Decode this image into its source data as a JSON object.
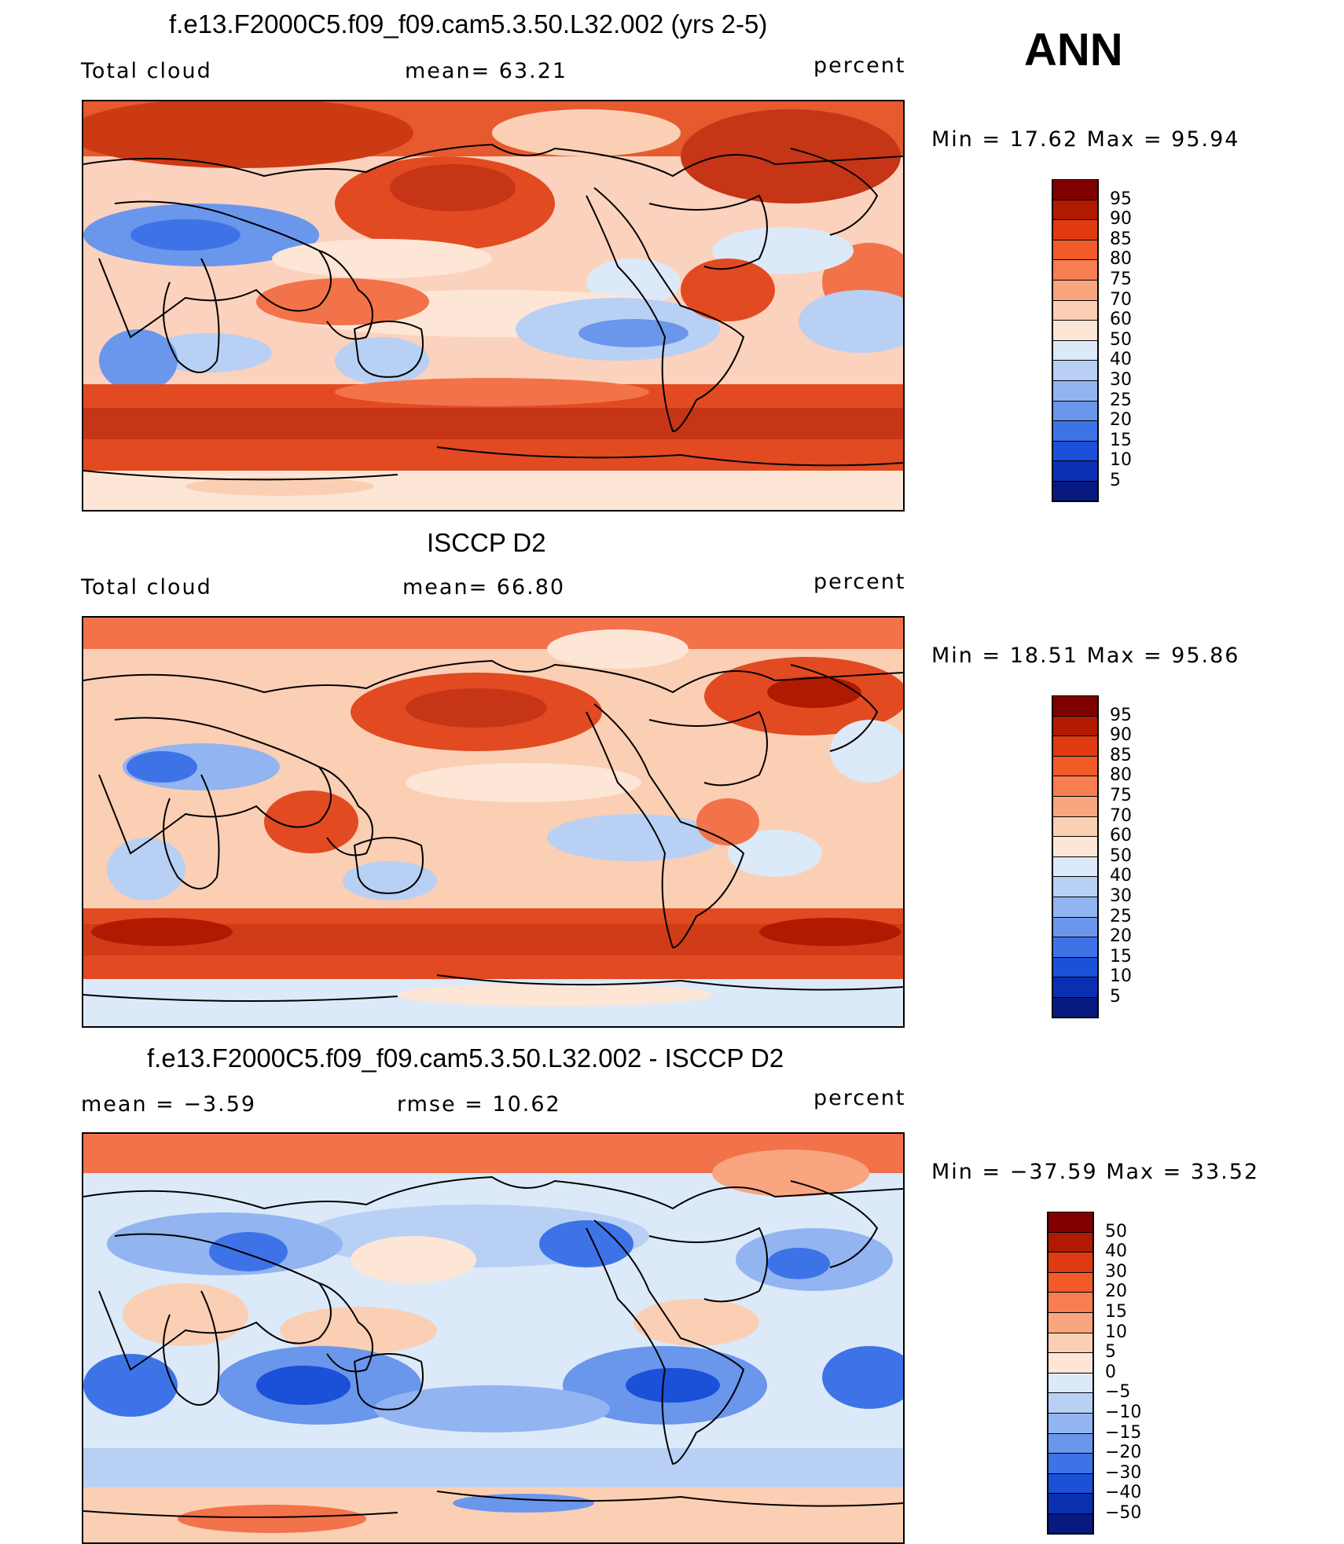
{
  "season": "ANN",
  "panels": [
    {
      "title": "f.e13.F2000C5.f09_f09.cam5.3.50.L32.002 (yrs 2-5)",
      "left_label": "Total cloud",
      "center_label": "mean=   63.21",
      "right_label": "percent",
      "minmax": "Min =   17.62  Max =   95.94",
      "colorbar": {
        "colors": [
          "#800000",
          "#b01a00",
          "#e03a10",
          "#f25a28",
          "#f67e50",
          "#f8a580",
          "#fbcfb4",
          "#fde6d6",
          "#dce9f8",
          "#b8d0f3",
          "#92b4f0",
          "#6a96ec",
          "#3e73e8",
          "#1b50d8",
          "#0a2fb0",
          "#061a80"
        ],
        "ticks": [
          "95",
          "90",
          "85",
          "80",
          "75",
          "70",
          "60",
          "50",
          "40",
          "30",
          "25",
          "20",
          "15",
          "10",
          "5"
        ]
      }
    },
    {
      "title": "ISCCP D2",
      "left_label": "Total cloud",
      "center_label": "mean=   66.80",
      "right_label": "percent",
      "minmax": "Min =   18.51  Max =   95.86",
      "colorbar": {
        "colors": [
          "#800000",
          "#b01a00",
          "#e03a10",
          "#f25a28",
          "#f67e50",
          "#f8a580",
          "#fbcfb4",
          "#fde6d6",
          "#dce9f8",
          "#b8d0f3",
          "#92b4f0",
          "#6a96ec",
          "#3e73e8",
          "#1b50d8",
          "#0a2fb0",
          "#061a80"
        ],
        "ticks": [
          "95",
          "90",
          "85",
          "80",
          "75",
          "70",
          "60",
          "50",
          "40",
          "30",
          "25",
          "20",
          "15",
          "10",
          "5"
        ]
      }
    },
    {
      "title": "f.e13.F2000C5.f09_f09.cam5.3.50.L32.002 - ISCCP D2",
      "left_label": "mean =   −3.59",
      "center_label": "rmse =   10.62",
      "right_label": "percent",
      "minmax": "Min = −37.59  Max =   33.52",
      "colorbar": {
        "colors": [
          "#800000",
          "#b01a00",
          "#e03a10",
          "#f25a28",
          "#f67e50",
          "#f8a580",
          "#fbcfb4",
          "#fde6d6",
          "#dce9f8",
          "#b8d0f3",
          "#92b4f0",
          "#6a96ec",
          "#3e73e8",
          "#1b50d8",
          "#0a2fb0",
          "#061a80"
        ],
        "ticks": [
          "50",
          "40",
          "30",
          "20",
          "15",
          "10",
          "5",
          "0",
          "−5",
          "−10",
          "−15",
          "−20",
          "−30",
          "−40",
          "−50"
        ]
      }
    }
  ]
}
